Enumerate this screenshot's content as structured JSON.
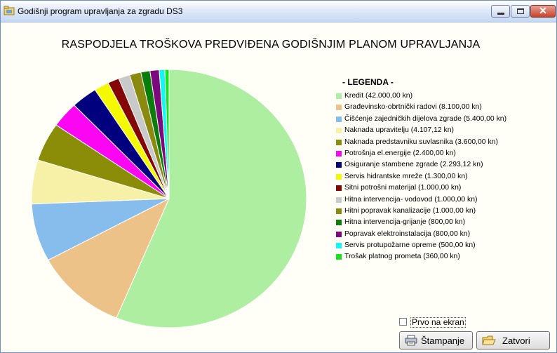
{
  "window": {
    "title": "Godišnji program upravljanja za zgradu DS3"
  },
  "chart_data": {
    "type": "pie",
    "title": "RASPODJELA TROŠKOVA PREDVIĐENA GODIŠNJIM PLANOM UPRAVLJANJA",
    "legend_title": "- LEGENDA -",
    "legend_position": "right",
    "slices": [
      {
        "name": "Kredit",
        "value": 42000.0,
        "label": "Kredit (42.000,00 kn)",
        "color": "#aeeea0"
      },
      {
        "name": "Građevinsko-obrtnički radovi",
        "value": 8100.0,
        "label": "Građevinsko-obrtnički radovi (8.100,00 kn)",
        "color": "#ecc288"
      },
      {
        "name": "Čišćenje zajedničkih dijelova zgrade",
        "value": 5400.0,
        "label": "Čišćenje zajedničkih dijelova zgrade (5.400,00 kn)",
        "color": "#86bdec"
      },
      {
        "name": "Naknada upravitelju",
        "value": 4107.12,
        "label": "Naknada upravitelju (4.107,12 kn)",
        "color": "#f6f1a6"
      },
      {
        "name": "Naknada predstavniku suvlasnika",
        "value": 3600.0,
        "label": "Naknada predstavniku suvlasnika (3.600,00 kn)",
        "color": "#8b8c08"
      },
      {
        "name": "Potrošnja el.energije",
        "value": 2400.0,
        "label": "Potrošnja el.energije (2.400,00 kn)",
        "color": "#fb06f2"
      },
      {
        "name": "Osiguranje stambene zgrade",
        "value": 2293.12,
        "label": "Osiguranje stambene zgrade (2.293,12 kn)",
        "color": "#00007f"
      },
      {
        "name": "Servis hidrantske mreže",
        "value": 1300.0,
        "label": "Servis hidrantske mreže (1.300,00 kn)",
        "color": "#f4f902"
      },
      {
        "name": "Sitni potrošni materijal",
        "value": 1000.0,
        "label": "Sitni potrošni materijal (1.000,00 kn)",
        "color": "#850606"
      },
      {
        "name": "Hitna intervencija- vodovod",
        "value": 1000.0,
        "label": "Hitna intervencija- vodovod (1.000,00 kn)",
        "color": "#c9c9c9"
      },
      {
        "name": "Hitni popravak kanalizacije",
        "value": 1000.0,
        "label": "Hitni popravak kanalizacije (1.000,00 kn)",
        "color": "#8b8a10"
      },
      {
        "name": "Hitna intervencija-grijanje",
        "value": 800.0,
        "label": "Hitna intervencija-grijanje (800,00 kn)",
        "color": "#0b7d0b"
      },
      {
        "name": "Popravak elektroinstalacija",
        "value": 800.0,
        "label": "Popravak elektroinstalacija (800,00 kn)",
        "color": "#7c0a7c"
      },
      {
        "name": "Servis protupožarne opreme",
        "value": 500.0,
        "label": "Servis protupožarne opreme (500,00 kn)",
        "color": "#12f7f4"
      },
      {
        "name": "Trošak platnog prometa",
        "value": 360.0,
        "label": "Trošak platnog prometa (360,00 kn)",
        "color": "#17e21f"
      }
    ]
  },
  "controls": {
    "checkbox_label": "Prvo na ekran",
    "checkbox_checked": false,
    "print_button": "Štampanje",
    "close_button": "Zatvori"
  }
}
